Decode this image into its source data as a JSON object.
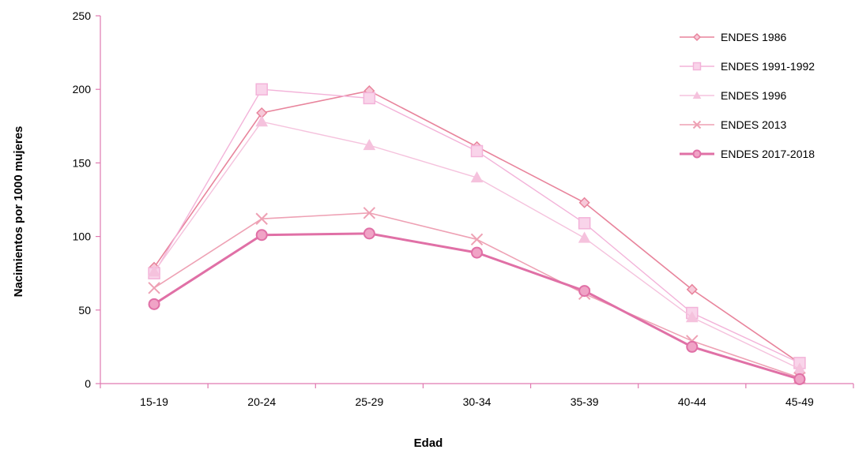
{
  "chart_data": {
    "type": "line",
    "title": "",
    "xlabel": "Edad",
    "ylabel": "Nacimientos por 1000 mujeres",
    "categories": [
      "15-19",
      "20-24",
      "25-29",
      "30-34",
      "35-39",
      "40-44",
      "45-49"
    ],
    "ylim": [
      0,
      250
    ],
    "yticks": [
      0,
      50,
      100,
      150,
      200,
      250
    ],
    "grid": false,
    "legend_position": "top-right",
    "series": [
      {
        "name": "ENDES 1986",
        "values": [
          79,
          184,
          199,
          161,
          123,
          64,
          14
        ],
        "color": "#e8849c",
        "marker": "diamond",
        "width": 1.6
      },
      {
        "name": "ENDES 1991-1992",
        "values": [
          75,
          200,
          194,
          158,
          109,
          48,
          14
        ],
        "color": "#f3b3d9",
        "marker": "square",
        "width": 1.4
      },
      {
        "name": "ENDES 1996",
        "values": [
          76,
          178,
          162,
          140,
          99,
          45,
          10
        ],
        "color": "#f5c2dd",
        "marker": "triangle",
        "width": 1.4
      },
      {
        "name": "ENDES 2013",
        "values": [
          65,
          112,
          116,
          98,
          61,
          29,
          4
        ],
        "color": "#eea1b4",
        "marker": "x",
        "width": 1.6
      },
      {
        "name": "ENDES 2017-2018",
        "values": [
          54,
          101,
          102,
          89,
          63,
          25,
          3
        ],
        "color": "#e070a6",
        "marker": "circle",
        "width": 3
      }
    ]
  }
}
